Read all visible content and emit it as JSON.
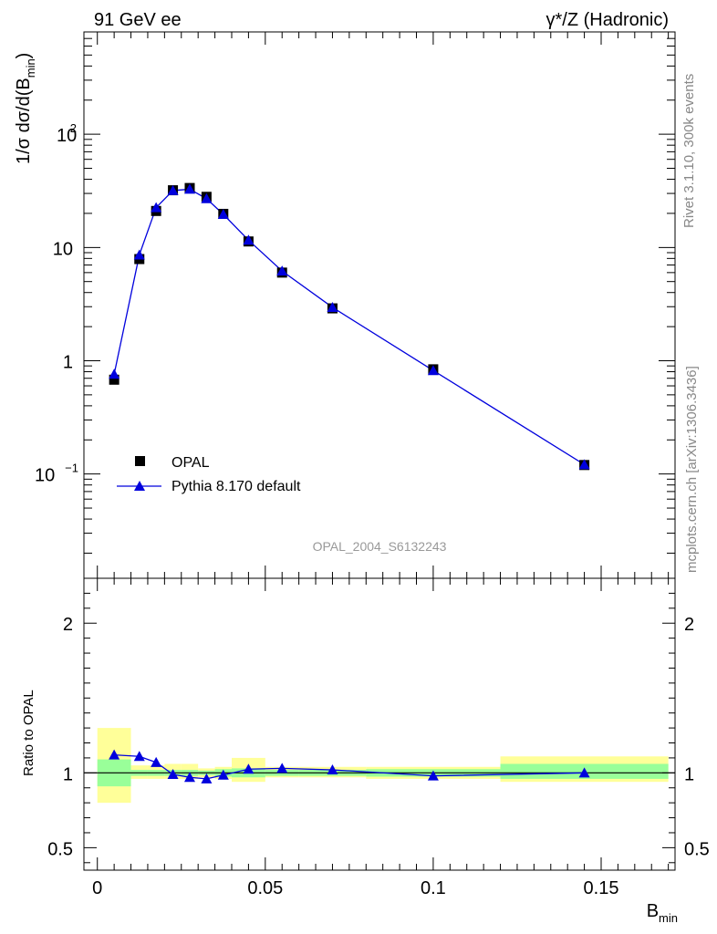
{
  "header": {
    "left": "91 GeV ee",
    "right": "γ*/Z (Hadronic)"
  },
  "side": {
    "top": "Rivet 3.1.10,  300k events",
    "bottom": "mcplots.cern.ch [arXiv:1306.3436]"
  },
  "watermark": "OPAL_2004_S6132243",
  "chart_data": [
    {
      "type": "scatter",
      "panel": "main",
      "ylabel": "1/σ dσ/d(B_min)",
      "yscale": "log",
      "ylim": [
        0.012,
        800
      ],
      "xlim": [
        -0.004,
        0.172
      ],
      "yticks": [
        {
          "v": 0.1,
          "base": "10",
          "sup": "−1"
        },
        {
          "v": 1,
          "label": "1"
        },
        {
          "v": 10,
          "label": "10"
        },
        {
          "v": 100,
          "base": "10",
          "sup": "2"
        }
      ],
      "legend": {
        "placement": "bottom-left"
      },
      "series": [
        {
          "name": "OPAL",
          "marker": "square",
          "color": "#000000",
          "x": [
            0.005,
            0.0125,
            0.0175,
            0.0225,
            0.0275,
            0.0325,
            0.0375,
            0.045,
            0.055,
            0.07,
            0.1,
            0.145
          ],
          "y": [
            0.68,
            7.9,
            21.0,
            32.0,
            33.5,
            28.0,
            19.8,
            11.3,
            6.0,
            2.9,
            0.84,
            0.12
          ]
        },
        {
          "name": "Pythia 8.170 default",
          "marker": "triangle",
          "color": "#0000dd",
          "x": [
            0.005,
            0.0125,
            0.0175,
            0.0225,
            0.0275,
            0.0325,
            0.0375,
            0.045,
            0.055,
            0.07,
            0.1,
            0.145
          ],
          "y": [
            0.76,
            8.6,
            22.5,
            31.8,
            32.7,
            27.0,
            19.6,
            11.6,
            6.2,
            2.96,
            0.82,
            0.121
          ]
        }
      ]
    },
    {
      "type": "scatter",
      "panel": "ratio",
      "ylabel": "Ratio to OPAL",
      "xlabel": "B_min",
      "ylim": [
        0.35,
        2.3
      ],
      "xlim": [
        -0.004,
        0.172
      ],
      "xticks": [
        0,
        0.05,
        0.1,
        0.15
      ],
      "xticklabels": [
        "0",
        "0.05",
        "0.1",
        "0.15"
      ],
      "yticks": [
        0.5,
        1,
        2
      ],
      "yticklabels": [
        "0.5",
        "1",
        "2"
      ],
      "bands": [
        {
          "x0": 0.0,
          "x1": 0.01,
          "inner": [
            0.91,
            1.09
          ],
          "outer": [
            0.8,
            1.3
          ]
        },
        {
          "x0": 0.01,
          "x1": 0.015,
          "inner": [
            0.98,
            1.02
          ],
          "outer": [
            0.96,
            1.05
          ]
        },
        {
          "x0": 0.015,
          "x1": 0.02,
          "inner": [
            0.98,
            1.02
          ],
          "outer": [
            0.96,
            1.05
          ]
        },
        {
          "x0": 0.02,
          "x1": 0.025,
          "inner": [
            0.98,
            1.02
          ],
          "outer": [
            0.96,
            1.06
          ]
        },
        {
          "x0": 0.025,
          "x1": 0.03,
          "inner": [
            0.98,
            1.02
          ],
          "outer": [
            0.96,
            1.06
          ]
        },
        {
          "x0": 0.03,
          "x1": 0.035,
          "inner": [
            0.985,
            1.015
          ],
          "outer": [
            0.97,
            1.03
          ]
        },
        {
          "x0": 0.035,
          "x1": 0.04,
          "inner": [
            0.975,
            1.025
          ],
          "outer": [
            0.96,
            1.04
          ]
        },
        {
          "x0": 0.04,
          "x1": 0.05,
          "inner": [
            0.97,
            1.03
          ],
          "outer": [
            0.94,
            1.1
          ]
        },
        {
          "x0": 0.05,
          "x1": 0.06,
          "inner": [
            0.98,
            1.02
          ],
          "outer": [
            0.97,
            1.04
          ]
        },
        {
          "x0": 0.06,
          "x1": 0.08,
          "inner": [
            0.98,
            1.02
          ],
          "outer": [
            0.97,
            1.04
          ]
        },
        {
          "x0": 0.08,
          "x1": 0.12,
          "inner": [
            0.975,
            1.025
          ],
          "outer": [
            0.96,
            1.04
          ]
        },
        {
          "x0": 0.12,
          "x1": 0.17,
          "inner": [
            0.96,
            1.06
          ],
          "outer": [
            0.94,
            1.11
          ]
        }
      ],
      "series": [
        {
          "name": "Pythia 8.170 default",
          "marker": "triangle",
          "color": "#0000dd",
          "x": [
            0.005,
            0.0125,
            0.0175,
            0.0225,
            0.0275,
            0.0325,
            0.0375,
            0.045,
            0.055,
            0.07,
            0.1,
            0.145
          ],
          "y": [
            1.12,
            1.11,
            1.07,
            0.99,
            0.97,
            0.96,
            0.985,
            1.025,
            1.03,
            1.02,
            0.98,
            1.0
          ]
        }
      ]
    }
  ]
}
